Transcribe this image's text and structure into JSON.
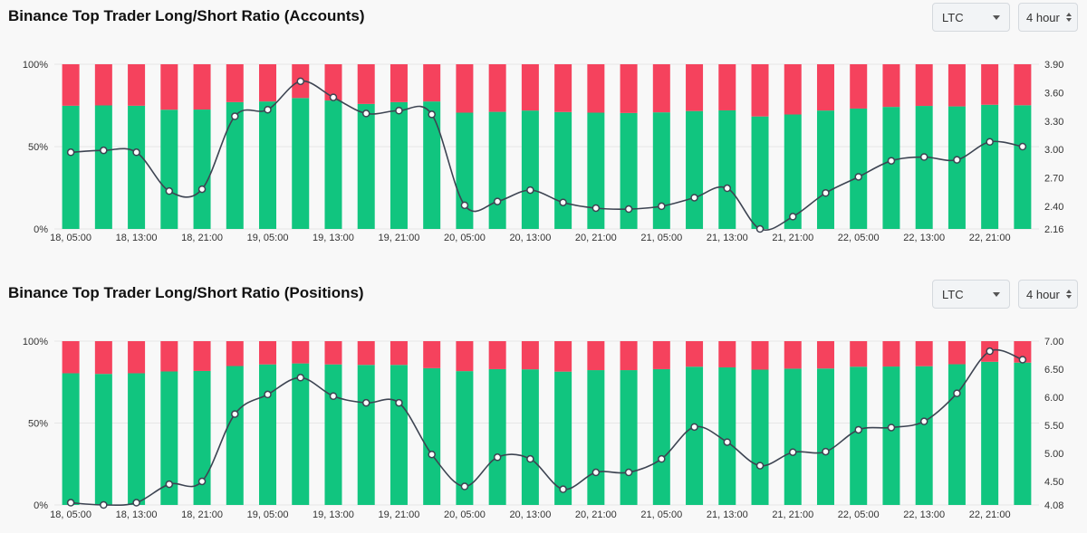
{
  "colors": {
    "long": "#11c57f",
    "short": "#f5425d",
    "line": "#3d4452",
    "grid": "#e6e6e6"
  },
  "panels": [
    {
      "title": "Binance Top Trader Long/Short Ratio (Accounts)",
      "symbol_select": {
        "value": "LTC",
        "icon": "chevron-down-icon"
      },
      "interval_select": {
        "value": "4 hour",
        "icon": "up-down-arrows-icon"
      },
      "chart_data": {
        "type": "bar",
        "stacked": true,
        "x": [
          "18, 05:00",
          "18, 09:00",
          "18, 13:00",
          "18, 17:00",
          "18, 21:00",
          "19, 01:00",
          "19, 05:00",
          "19, 09:00",
          "19, 13:00",
          "19, 17:00",
          "19, 21:00",
          "20, 01:00",
          "20, 05:00",
          "20, 09:00",
          "20, 13:00",
          "20, 17:00",
          "20, 21:00",
          "21, 01:00",
          "21, 05:00",
          "21, 09:00",
          "21, 13:00",
          "21, 17:00",
          "21, 21:00",
          "22, 01:00",
          "22, 05:00",
          "22, 09:00",
          "22, 13:00",
          "22, 17:00",
          "22, 21:00",
          "23, 01:00"
        ],
        "x_tick_labels": [
          "18, 05:00",
          "18, 13:00",
          "18, 21:00",
          "19, 05:00",
          "19, 13:00",
          "19, 21:00",
          "20, 05:00",
          "20, 13:00",
          "20, 21:00",
          "21, 05:00",
          "21, 13:00",
          "21, 21:00",
          "22, 05:00",
          "22, 13:00",
          "22, 21:00"
        ],
        "y_left_ticks": [
          "0%",
          "50%",
          "100%"
        ],
        "y_right_ticks": [
          "2.16",
          "2.40",
          "2.70",
          "3.00",
          "3.30",
          "3.60",
          "3.90"
        ],
        "y_left_range": [
          0,
          100
        ],
        "y_right_range": [
          2.16,
          3.9
        ],
        "grid": true,
        "series": [
          {
            "type": "bar",
            "values": [
              74.8,
              75.0,
              74.8,
              72.4,
              72.5,
              77.0,
              77.4,
              79.5,
              78.0,
              75.9,
              77.0,
              77.4,
              70.6,
              71.1,
              71.9,
              71.0,
              70.6,
              70.4,
              70.8,
              71.6,
              72.0,
              68.3,
              69.5,
              71.9,
              73.1,
              74.1,
              74.7,
              74.4,
              75.4,
              75.1
            ]
          },
          {
            "type": "bar",
            "values": [
              25.2,
              25.0,
              25.2,
              27.6,
              27.5,
              23.0,
              22.6,
              20.5,
              22.0,
              24.1,
              23.0,
              22.6,
              29.4,
              28.9,
              28.1,
              29.0,
              29.4,
              29.6,
              29.2,
              28.4,
              28.0,
              31.7,
              30.5,
              28.1,
              26.9,
              25.9,
              25.3,
              25.6,
              24.6,
              24.9
            ]
          },
          {
            "type": "line",
            "values": [
              2.97,
              2.99,
              2.97,
              2.56,
              2.58,
              3.35,
              3.42,
              3.72,
              3.55,
              3.38,
              3.41,
              3.37,
              2.41,
              2.45,
              2.57,
              2.44,
              2.38,
              2.37,
              2.4,
              2.49,
              2.59,
              2.16,
              2.29,
              2.54,
              2.71,
              2.88,
              2.92,
              2.89,
              3.08,
              3.03
            ]
          }
        ]
      }
    },
    {
      "title": "Binance Top Trader Long/Short Ratio (Positions)",
      "symbol_select": {
        "value": "LTC",
        "icon": "chevron-down-icon"
      },
      "interval_select": {
        "value": "4 hour",
        "icon": "up-down-arrows-icon"
      },
      "chart_data": {
        "type": "bar",
        "stacked": true,
        "x": [
          "18, 05:00",
          "18, 09:00",
          "18, 13:00",
          "18, 17:00",
          "18, 21:00",
          "19, 01:00",
          "19, 05:00",
          "19, 09:00",
          "19, 13:00",
          "19, 17:00",
          "19, 21:00",
          "20, 01:00",
          "20, 05:00",
          "20, 09:00",
          "20, 13:00",
          "20, 17:00",
          "20, 21:00",
          "21, 01:00",
          "21, 05:00",
          "21, 09:00",
          "21, 13:00",
          "21, 17:00",
          "21, 21:00",
          "22, 01:00",
          "22, 05:00",
          "22, 09:00",
          "22, 13:00",
          "22, 17:00",
          "22, 21:00",
          "23, 01:00"
        ],
        "x_tick_labels": [
          "18, 05:00",
          "18, 13:00",
          "18, 21:00",
          "19, 05:00",
          "19, 13:00",
          "19, 21:00",
          "20, 05:00",
          "20, 13:00",
          "20, 21:00",
          "21, 05:00",
          "21, 13:00",
          "21, 21:00",
          "22, 05:00",
          "22, 13:00",
          "22, 21:00"
        ],
        "y_left_ticks": [
          "0%",
          "50%",
          "100%"
        ],
        "y_right_ticks": [
          "4.08",
          "4.50",
          "5.00",
          "5.50",
          "6.00",
          "6.50",
          "7.00"
        ],
        "y_left_range": [
          0,
          100
        ],
        "y_right_range": [
          4.08,
          7.0
        ],
        "grid": true,
        "series": [
          {
            "type": "bar",
            "values": [
              80.4,
              80.0,
              80.4,
              81.5,
              81.8,
              84.8,
              85.8,
              86.4,
              85.8,
              85.5,
              85.5,
              83.5,
              81.7,
              82.9,
              82.8,
              81.4,
              82.3,
              82.3,
              82.9,
              84.4,
              84.0,
              82.6,
              83.2,
              83.3,
              84.4,
              84.5,
              84.7,
              85.9,
              87.4,
              86.9
            ]
          },
          {
            "type": "bar",
            "values": [
              19.6,
              20.0,
              19.6,
              18.5,
              18.2,
              15.2,
              14.2,
              13.6,
              14.2,
              14.5,
              14.5,
              16.5,
              18.3,
              17.1,
              17.2,
              18.6,
              17.7,
              17.7,
              17.1,
              15.6,
              16.0,
              17.4,
              16.8,
              16.7,
              15.6,
              15.5,
              15.3,
              14.1,
              12.6,
              13.1
            ]
          },
          {
            "type": "line",
            "values": [
              4.12,
              4.08,
              4.12,
              4.45,
              4.5,
              5.7,
              6.05,
              6.35,
              6.02,
              5.9,
              5.9,
              4.98,
              4.41,
              4.93,
              4.9,
              4.36,
              4.66,
              4.66,
              4.9,
              5.47,
              5.2,
              4.78,
              5.02,
              5.03,
              5.42,
              5.46,
              5.57,
              6.07,
              6.82,
              6.67
            ]
          }
        ]
      }
    }
  ]
}
